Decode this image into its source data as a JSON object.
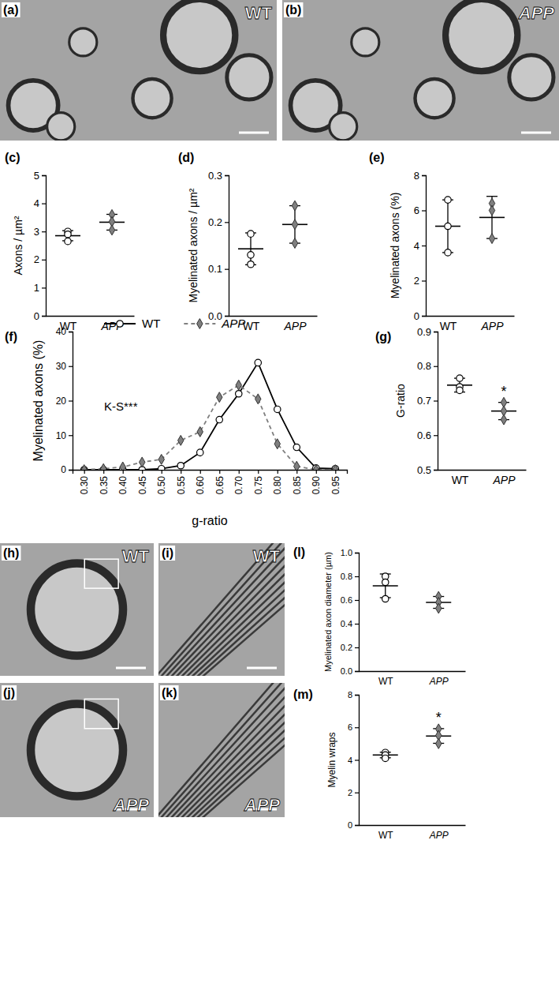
{
  "images": [
    {
      "panel": "(a)",
      "label": "WT"
    },
    {
      "panel": "(b)",
      "label": "APP"
    },
    {
      "panel": "(h)",
      "label": "WT"
    },
    {
      "panel": "(i)",
      "label": "WT"
    },
    {
      "panel": "(j)",
      "label": "APP"
    },
    {
      "panel": "(k)",
      "label": "APP"
    }
  ],
  "chart_data": [
    {
      "type": "scatter",
      "title": "(c)",
      "y_label": "Axons / µm²",
      "ylim": [
        0,
        5
      ],
      "yticks": [
        0,
        1,
        2,
        3,
        4,
        5
      ],
      "series": [
        {
          "name": "WT",
          "color": "#ffffff",
          "marker": "circle",
          "values": [
            3.0,
            2.65,
            2.9
          ],
          "mean": 2.85,
          "sd": 0.18
        },
        {
          "name": "APP",
          "color": "#7f7f7f",
          "marker": "diamond",
          "values": [
            3.6,
            3.35,
            3.05
          ],
          "mean": 3.33,
          "sd": 0.28
        }
      ]
    },
    {
      "type": "scatter",
      "title": "(d)",
      "y_label": "Myelinated axons / µm²",
      "ylim": [
        0,
        0.3
      ],
      "yticks": [
        {
          "value": 0,
          "label": "0.0"
        },
        0.1,
        0.2,
        0.3
      ],
      "series": [
        {
          "name": "WT",
          "color": "#ffffff",
          "marker": "circle",
          "values": [
            0.175,
            0.13,
            0.11
          ],
          "mean": 0.143,
          "sd": 0.034
        },
        {
          "name": "APP",
          "color": "#7f7f7f",
          "marker": "diamond",
          "values": [
            0.235,
            0.195,
            0.155
          ],
          "mean": 0.195,
          "sd": 0.04
        }
      ]
    },
    {
      "type": "scatter",
      "title": "(e)",
      "y_label": "Myelinated axons (%)",
      "ylim": [
        0,
        8
      ],
      "yticks": [
        0,
        2,
        4,
        6,
        8
      ],
      "series": [
        {
          "name": "WT",
          "color": "#ffffff",
          "marker": "circle",
          "values": [
            6.6,
            5.1,
            3.6
          ],
          "mean": 5.1,
          "sd": 1.5
        },
        {
          "name": "APP",
          "color": "#7f7f7f",
          "marker": "diamond",
          "values": [
            6.4,
            6.0,
            4.4
          ],
          "mean": 5.6,
          "sd": 1.2
        }
      ]
    },
    {
      "type": "line",
      "title": "(f)",
      "x_label": "g-ratio",
      "y_label": "Myelinated axons (%)",
      "annotation": "K-S***",
      "legend": "top",
      "x": [
        0.3,
        0.35,
        0.4,
        0.45,
        0.5,
        0.55,
        0.6,
        0.65,
        0.7,
        0.75,
        0.8,
        0.85,
        0.9,
        0.95
      ],
      "xlim": [
        0.27,
        0.98
      ],
      "xticks": [
        {
          "value": 0.3,
          "label": "0.30"
        },
        0.35,
        {
          "value": 0.4,
          "label": "0.40"
        },
        0.45,
        {
          "value": 0.5,
          "label": "0.50"
        },
        0.55,
        {
          "value": 0.6,
          "label": "0.60"
        },
        0.65,
        {
          "value": 0.7,
          "label": "0.70"
        },
        0.75,
        {
          "value": 0.8,
          "label": "0.80"
        },
        0.85,
        {
          "value": 0.9,
          "label": "0.90"
        },
        0.95
      ],
      "ylim": [
        0,
        40
      ],
      "yticks": [
        0,
        10,
        20,
        30,
        40
      ],
      "series": [
        {
          "name": "WT",
          "color": "#000000",
          "marker": "circle",
          "line_style": "solid",
          "values": [
            0,
            0,
            0,
            0,
            0.3,
            1.2,
            5,
            14.5,
            22,
            31,
            17.5,
            6.5,
            0.5,
            0.3
          ]
        },
        {
          "name": "APP",
          "color": "#7f7f7f",
          "marker": "diamond",
          "line_style": "dashed",
          "values": [
            0,
            0.3,
            0.8,
            2.2,
            3,
            8.5,
            11,
            21,
            24.5,
            20.5,
            7.5,
            1,
            0,
            0
          ]
        }
      ]
    },
    {
      "type": "scatter",
      "title": "(g)",
      "y_label": "G-ratio",
      "annotation": "*",
      "ylim": [
        0.5,
        0.9
      ],
      "yticks": [
        0.5,
        0.6,
        0.7,
        0.8,
        0.9
      ],
      "series": [
        {
          "name": "WT",
          "color": "#ffffff",
          "marker": "circle",
          "values": [
            0.765,
            0.74,
            0.73
          ],
          "mean": 0.745,
          "sd": 0.02
        },
        {
          "name": "APP",
          "color": "#7f7f7f",
          "marker": "diamond",
          "values": [
            0.695,
            0.67,
            0.645
          ],
          "mean": 0.67,
          "sd": 0.025
        }
      ]
    },
    {
      "type": "scatter",
      "title": "(l)",
      "y_label": "Myelinated axon diameter (µm)",
      "ylim": [
        0,
        1.0
      ],
      "yticks": [
        {
          "value": 0,
          "label": "0.0"
        },
        0.2,
        0.4,
        0.6,
        0.8,
        {
          "value": 1.0,
          "label": "1.0"
        }
      ],
      "series": [
        {
          "name": "WT",
          "color": "#ffffff",
          "marker": "circle",
          "values": [
            0.8,
            0.75,
            0.61
          ],
          "mean": 0.72,
          "sd": 0.1
        },
        {
          "name": "APP",
          "color": "#7f7f7f",
          "marker": "diamond",
          "values": [
            0.63,
            0.58,
            0.53
          ],
          "mean": 0.58,
          "sd": 0.05
        }
      ]
    },
    {
      "type": "scatter",
      "title": "(m)",
      "y_label": "Myelin wraps",
      "annotation": "*",
      "ylim": [
        0,
        8
      ],
      "yticks": [
        0,
        2,
        4,
        6,
        8
      ],
      "series": [
        {
          "name": "WT",
          "color": "#ffffff",
          "marker": "circle",
          "values": [
            4.45,
            4.3,
            4.1
          ],
          "mean": 4.3,
          "sd": 0.17
        },
        {
          "name": "APP",
          "color": "#7f7f7f",
          "marker": "diamond",
          "values": [
            5.9,
            5.5,
            5.0
          ],
          "mean": 5.47,
          "sd": 0.45
        }
      ]
    }
  ]
}
